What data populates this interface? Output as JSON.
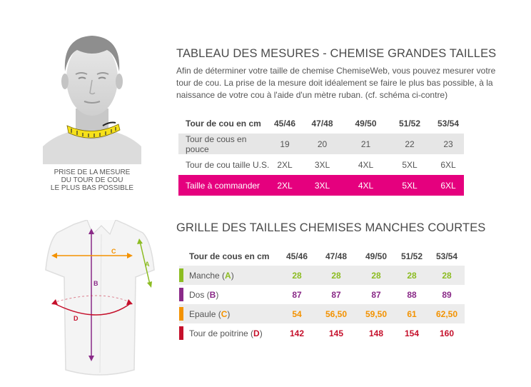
{
  "colors": {
    "pink": "#e5007e",
    "green": "#8cbc22",
    "purple": "#8a2a88",
    "orange": "#f39200",
    "red": "#c5102b"
  },
  "measure_caption": [
    "PRISE DE LA MESURE",
    "DU TOUR DE COU",
    "LE PLUS BAS POSSIBLE"
  ],
  "shirt_labels": {
    "a": "A",
    "b": "B",
    "c": "C",
    "d": "D"
  },
  "table1": {
    "title": "TABLEAU DES MESURES - CHEMISE GRANDES TAILLES",
    "intro": "Afin de déterminer votre taille de chemise ChemiseWeb, vous pouvez mesurer votre tour de cou. La prise de la mesure doit idéalement se faire le plus bas possible, à la naissance de votre cou à l'aide d'un mètre ruban. (cf. schéma ci-contre)",
    "rows": [
      {
        "label": "Tour de cou en cm",
        "values": [
          "45/46",
          "47/48",
          "49/50",
          "51/52",
          "53/54"
        ]
      },
      {
        "label": "Tour de cous en pouce",
        "values": [
          "19",
          "20",
          "21",
          "22",
          "23"
        ]
      },
      {
        "label": "Tour de cou taille U.S.",
        "values": [
          "2XL",
          "3XL",
          "4XL",
          "5XL",
          "6XL"
        ]
      },
      {
        "label": "Taille à commander",
        "values": [
          "2XL",
          "3XL",
          "4XL",
          "5XL",
          "6XL"
        ]
      }
    ]
  },
  "table2": {
    "title": "GRILLE DES TAILLES CHEMISES MANCHES COURTES",
    "header": {
      "label": "Tour de cous en cm",
      "values": [
        "45/46",
        "47/48",
        "49/50",
        "51/52",
        "53/54"
      ]
    },
    "rows": [
      {
        "label": "Manche (",
        "letter": "A",
        "close": ")",
        "color": "green",
        "values": [
          "28",
          "28",
          "28",
          "28",
          "28"
        ]
      },
      {
        "label": "Dos (",
        "letter": "B",
        "close": ")",
        "color": "purple",
        "values": [
          "87",
          "87",
          "87",
          "88",
          "89"
        ]
      },
      {
        "label": "Epaule (",
        "letter": "C",
        "close": ")",
        "color": "orange",
        "values": [
          "54",
          "56,50",
          "59,50",
          "61",
          "62,50"
        ]
      },
      {
        "label": "Tour de poitrine (",
        "letter": "D",
        "close": ")",
        "color": "red",
        "values": [
          "142",
          "145",
          "148",
          "154",
          "160"
        ]
      }
    ]
  }
}
